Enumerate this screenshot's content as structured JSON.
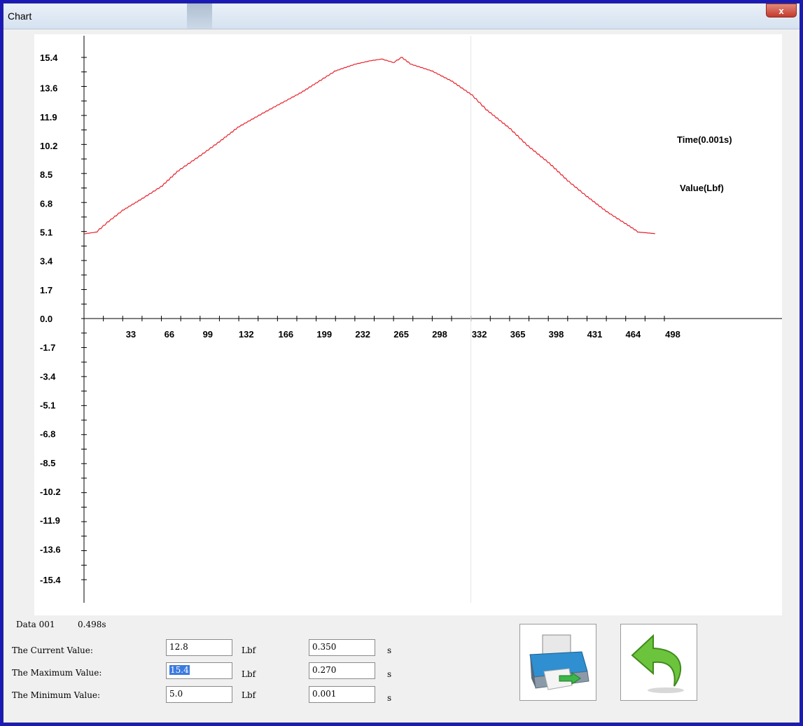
{
  "window": {
    "title": "Chart",
    "close_label": "x"
  },
  "chart_data": {
    "type": "line",
    "xlabel": "",
    "ylabel": "",
    "x_ticks": [
      33,
      66,
      99,
      132,
      166,
      199,
      232,
      265,
      298,
      332,
      365,
      398,
      431,
      464,
      498
    ],
    "y_ticks": [
      15.4,
      13.6,
      11.9,
      10.2,
      8.5,
      6.8,
      5.1,
      3.4,
      1.7,
      0.0,
      -1.7,
      -3.4,
      -5.1,
      -6.8,
      -8.5,
      -10.2,
      -11.9,
      -13.6,
      -15.4
    ],
    "y_tick_labels": [
      "15.4",
      "13.6",
      "11.9",
      "10.2",
      "8.5",
      "6.8",
      "5.1",
      "3.4",
      "1.7",
      "0.0",
      "-1.7",
      "-3.4",
      "-5.1",
      "-6.8",
      "-8.5",
      "-10.2",
      "-11.9",
      "-13.6",
      "-15.4"
    ],
    "xlim": [
      0,
      498
    ],
    "ylim": [
      -15.4,
      15.4
    ],
    "legend": [
      "Time(0.001s)",
      "Value(Lbf)"
    ],
    "series": [
      {
        "color": "#e8202a",
        "x": [
          0,
          10,
          20,
          33,
          50,
          66,
          80,
          99,
          115,
          132,
          150,
          166,
          185,
          199,
          215,
          232,
          245,
          255,
          265,
          272,
          280,
          298,
          315,
          332,
          345,
          365,
          380,
          398,
          415,
          431,
          448,
          464,
          475,
          490
        ],
        "y": [
          5.0,
          5.1,
          5.7,
          6.4,
          7.1,
          7.8,
          8.7,
          9.6,
          10.4,
          11.3,
          12.0,
          12.6,
          13.3,
          13.9,
          14.6,
          15.0,
          15.2,
          15.3,
          15.1,
          15.4,
          15.0,
          14.6,
          14.0,
          13.2,
          12.3,
          11.2,
          10.2,
          9.2,
          8.1,
          7.2,
          6.3,
          5.6,
          5.1,
          5.0
        ]
      }
    ]
  },
  "info": {
    "data_label": "Data 001",
    "data_time": "0.498s",
    "rows": [
      {
        "label": "The Current Value:",
        "value": "12.8",
        "unit": "Lbf",
        "time": "0.350",
        "time_unit": "s"
      },
      {
        "label": "The Maximum Value:",
        "value": "15.4",
        "unit": "Lbf",
        "time": "0.270",
        "time_unit": "s"
      },
      {
        "label": "The Minimum Value:",
        "value": "5.0",
        "unit": "Lbf",
        "time": "0.001",
        "time_unit": "s"
      }
    ]
  },
  "icons": {
    "print": "printer-icon",
    "back": "back-arrow-icon"
  }
}
